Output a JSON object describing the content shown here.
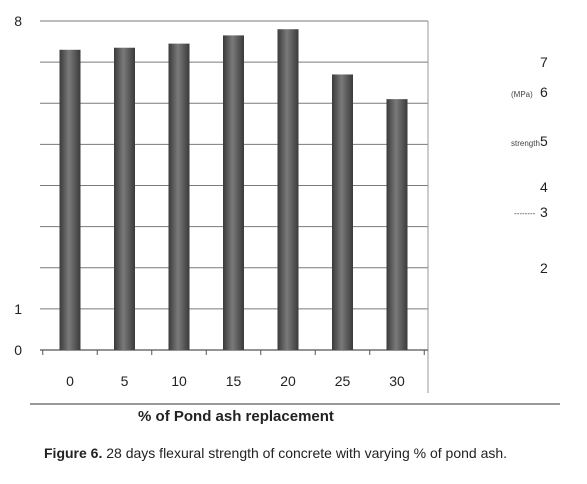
{
  "chart_data": {
    "type": "bar",
    "categories": [
      "0",
      "5",
      "10",
      "15",
      "20",
      "25",
      "30"
    ],
    "values": [
      7.3,
      7.35,
      7.45,
      7.65,
      7.8,
      6.7,
      6.1
    ],
    "xlabel": "% of Pond ash replacement",
    "ylabel": "",
    "ylim": [
      0,
      8
    ],
    "y_tick_labels_left": [
      "0",
      "1",
      "8"
    ],
    "right_labels": {
      "values": [
        "7",
        "6",
        "5",
        "4",
        "3",
        "2"
      ],
      "unit": "(MPa)",
      "quantity": "strength",
      "dash": "--------"
    },
    "grid": true,
    "bar_color": "#555555"
  },
  "caption": {
    "prefix": "Figure 6.",
    "text": " 28 days flexural strength of concrete with varying % of pond ash."
  }
}
